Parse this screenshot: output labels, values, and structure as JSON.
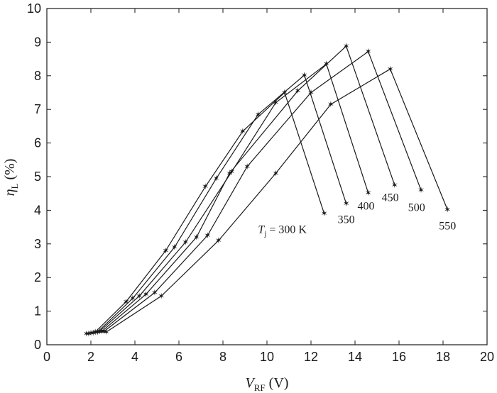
{
  "chart_data": {
    "type": "line",
    "xlabel": {
      "main": "V",
      "sub": "RF",
      "unit": " (V)"
    },
    "ylabel": {
      "main": "η",
      "sub": "L",
      "unit": " (%)"
    },
    "xlim": [
      0,
      20
    ],
    "ylim": [
      0,
      10
    ],
    "x_ticks": [
      0,
      2,
      4,
      6,
      8,
      10,
      12,
      14,
      16,
      18,
      20
    ],
    "y_ticks": [
      0,
      1,
      2,
      3,
      4,
      5,
      6,
      7,
      8,
      9,
      10
    ],
    "grid": false,
    "series": [
      {
        "name": "300",
        "points": [
          [
            1.8,
            0.33
          ],
          [
            2.2,
            0.38
          ],
          [
            3.6,
            1.28
          ],
          [
            5.4,
            2.8
          ],
          [
            7.2,
            4.7
          ],
          [
            8.9,
            6.35
          ],
          [
            10.8,
            7.5
          ],
          [
            12.6,
            3.9
          ]
        ]
      },
      {
        "name": "350",
        "points": [
          [
            1.9,
            0.33
          ],
          [
            2.3,
            0.38
          ],
          [
            3.9,
            1.38
          ],
          [
            5.8,
            2.9
          ],
          [
            7.7,
            4.95
          ],
          [
            9.6,
            6.85
          ],
          [
            11.7,
            8.02
          ],
          [
            13.6,
            4.2
          ]
        ]
      },
      {
        "name": "400",
        "points": [
          [
            2.0,
            0.35
          ],
          [
            2.4,
            0.4
          ],
          [
            4.2,
            1.45
          ],
          [
            6.3,
            3.05
          ],
          [
            8.4,
            5.15
          ],
          [
            10.4,
            7.2
          ],
          [
            12.7,
            8.35
          ],
          [
            14.6,
            4.52
          ]
        ]
      },
      {
        "name": "450",
        "points": [
          [
            2.1,
            0.35
          ],
          [
            2.5,
            0.4
          ],
          [
            4.5,
            1.5
          ],
          [
            6.8,
            3.2
          ],
          [
            8.3,
            5.1
          ],
          [
            11.4,
            7.55
          ],
          [
            13.6,
            8.88
          ],
          [
            15.8,
            4.75
          ]
        ]
      },
      {
        "name": "500",
        "points": [
          [
            2.2,
            0.37
          ],
          [
            2.6,
            0.4
          ],
          [
            4.9,
            1.55
          ],
          [
            7.3,
            3.25
          ],
          [
            9.1,
            5.3
          ],
          [
            12.0,
            7.5
          ],
          [
            14.6,
            8.72
          ],
          [
            17.0,
            4.6
          ]
        ]
      },
      {
        "name": "550",
        "points": [
          [
            2.3,
            0.37
          ],
          [
            2.7,
            0.38
          ],
          [
            5.2,
            1.45
          ],
          [
            7.8,
            3.1
          ],
          [
            10.4,
            5.1
          ],
          [
            12.9,
            7.15
          ],
          [
            15.6,
            8.2
          ],
          [
            18.2,
            4.02
          ]
        ]
      }
    ],
    "series_labels": [
      {
        "text": "Tj = 300 K",
        "prefix": "T",
        "sub": "j",
        "rest": " = 300 K",
        "x": 10.7,
        "y": 3.45
      },
      {
        "text": "350",
        "x": 13.6,
        "y": 3.75
      },
      {
        "text": "400",
        "x": 14.5,
        "y": 4.15
      },
      {
        "text": "450",
        "x": 15.6,
        "y": 4.4
      },
      {
        "text": "500",
        "x": 16.8,
        "y": 4.1
      },
      {
        "text": "550",
        "x": 18.2,
        "y": 3.55
      }
    ]
  }
}
